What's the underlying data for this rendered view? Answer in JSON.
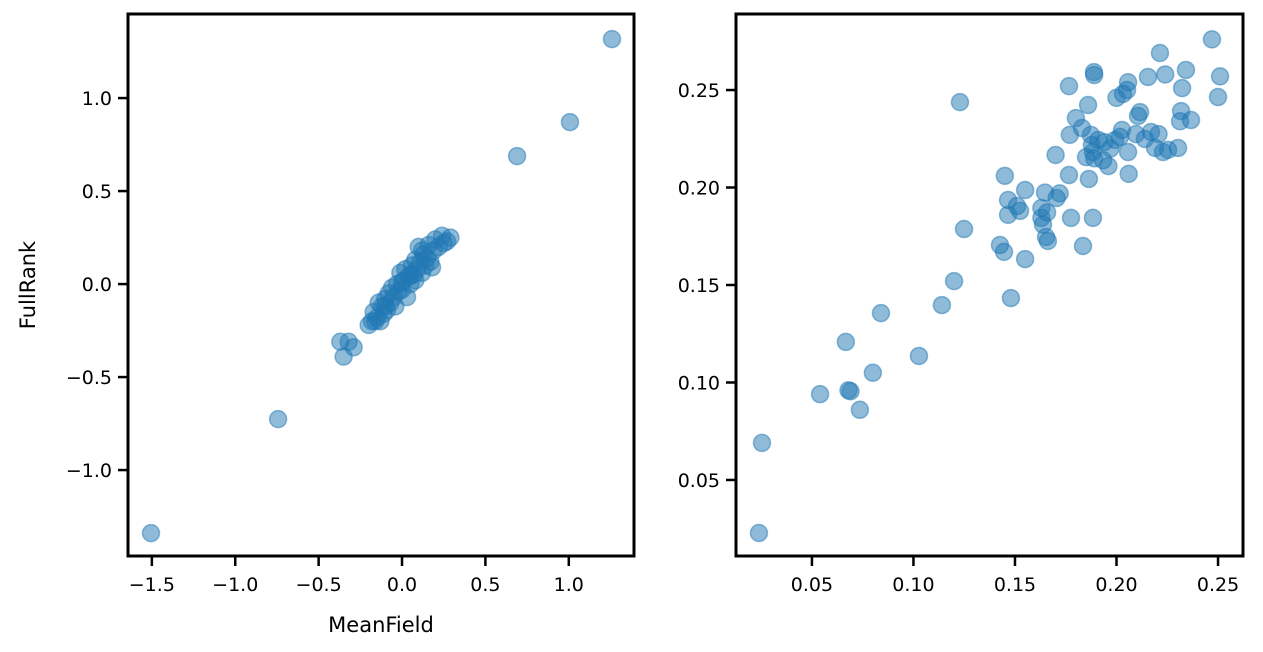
{
  "chart_data": [
    {
      "type": "scatter",
      "xlabel": "MeanField",
      "ylabel": "FullRank",
      "xlim": [
        -1.643,
        1.391
      ],
      "ylim": [
        -1.462,
        1.452
      ],
      "xticks": [
        -1.5,
        -1.0,
        -0.5,
        0.0,
        0.5,
        1.0
      ],
      "xtick_labels": [
        "−1.5",
        "−1.0",
        "−0.5",
        "0.0",
        "0.5",
        "1.0"
      ],
      "yticks": [
        -1.0,
        -0.5,
        0.0,
        0.5,
        1.0
      ],
      "ytick_labels": [
        "−1.0",
        "−0.5",
        "0.0",
        "0.5",
        "1.0"
      ],
      "grid": false,
      "color": "#1f77b4",
      "alpha": 0.5,
      "points": [
        [
          -1.505,
          -1.339
        ],
        [
          -0.743,
          -0.726
        ],
        [
          0.69,
          0.688
        ],
        [
          1.007,
          0.871
        ],
        [
          1.259,
          1.317
        ],
        [
          -0.37,
          -0.31
        ],
        [
          -0.32,
          -0.31
        ],
        [
          -0.35,
          -0.39
        ],
        [
          -0.29,
          -0.34
        ],
        [
          -0.2,
          -0.22
        ],
        [
          -0.18,
          -0.2
        ],
        [
          -0.17,
          -0.15
        ],
        [
          -0.15,
          -0.18
        ],
        [
          -0.14,
          -0.1
        ],
        [
          -0.13,
          -0.2
        ],
        [
          -0.12,
          -0.12
        ],
        [
          -0.11,
          -0.16
        ],
        [
          -0.1,
          -0.08
        ],
        [
          -0.09,
          -0.14
        ],
        [
          -0.08,
          -0.05
        ],
        [
          -0.07,
          -0.1
        ],
        [
          -0.06,
          -0.02
        ],
        [
          -0.05,
          -0.07
        ],
        [
          -0.04,
          -0.12
        ],
        [
          -0.03,
          0.0
        ],
        [
          -0.02,
          -0.04
        ],
        [
          -0.01,
          0.06
        ],
        [
          0.0,
          -0.03
        ],
        [
          0.01,
          0.02
        ],
        [
          0.02,
          0.08
        ],
        [
          0.03,
          -0.07
        ],
        [
          0.04,
          0.04
        ],
        [
          0.05,
          0.0
        ],
        [
          0.06,
          0.1
        ],
        [
          0.07,
          0.05
        ],
        [
          0.08,
          0.02
        ],
        [
          0.09,
          0.08
        ],
        [
          0.1,
          0.2
        ],
        [
          0.11,
          0.12
        ],
        [
          0.12,
          0.06
        ],
        [
          0.13,
          0.16
        ],
        [
          0.14,
          0.1
        ],
        [
          0.15,
          0.14
        ],
        [
          0.16,
          0.21
        ],
        [
          0.17,
          0.12
        ],
        [
          0.18,
          0.09
        ],
        [
          0.19,
          0.18
        ],
        [
          0.2,
          0.24
        ],
        [
          0.22,
          0.2
        ],
        [
          0.24,
          0.26
        ],
        [
          0.25,
          0.22
        ],
        [
          0.27,
          0.23
        ],
        [
          0.29,
          0.25
        ],
        [
          0.05,
          0.05
        ],
        [
          -0.1,
          -0.12
        ],
        [
          0.0,
          0.01
        ],
        [
          0.12,
          0.18
        ],
        [
          -0.16,
          -0.2
        ],
        [
          0.08,
          0.13
        ]
      ]
    },
    {
      "type": "scatter",
      "xlabel": "",
      "ylabel": "",
      "xlim": [
        0.0126,
        0.2623
      ],
      "ylim": [
        0.011,
        0.289
      ],
      "xticks": [
        0.05,
        0.1,
        0.15,
        0.2,
        0.25
      ],
      "xtick_labels": [
        "0.05",
        "0.10",
        "0.15",
        "0.20",
        "0.25"
      ],
      "yticks": [
        0.05,
        0.1,
        0.15,
        0.2,
        0.25
      ],
      "ytick_labels": [
        "0.05",
        "0.10",
        "0.15",
        "0.20",
        "0.25"
      ],
      "grid": false,
      "color": "#1f77b4",
      "alpha": 0.5,
      "points": [
        [
          0.0239,
          0.0228
        ],
        [
          0.0254,
          0.069
        ],
        [
          0.054,
          0.094
        ],
        [
          0.0667,
          0.1208
        ],
        [
          0.068,
          0.096
        ],
        [
          0.069,
          0.0955
        ],
        [
          0.0736,
          0.086
        ],
        [
          0.08,
          0.105
        ],
        [
          0.084,
          0.1356
        ],
        [
          0.1027,
          0.1136
        ],
        [
          0.114,
          0.1397
        ],
        [
          0.12,
          0.152
        ],
        [
          0.1229,
          0.2438
        ],
        [
          0.1249,
          0.1787
        ],
        [
          0.1426,
          0.1705
        ],
        [
          0.1446,
          0.167
        ],
        [
          0.145,
          0.206
        ],
        [
          0.1466,
          0.1936
        ],
        [
          0.1466,
          0.186
        ],
        [
          0.148,
          0.1433
        ],
        [
          0.151,
          0.1905
        ],
        [
          0.1525,
          0.188
        ],
        [
          0.155,
          0.1987
        ],
        [
          0.155,
          0.1633
        ],
        [
          0.163,
          0.1895
        ],
        [
          0.163,
          0.1844
        ],
        [
          0.1638,
          0.181
        ],
        [
          0.1648,
          0.1974
        ],
        [
          0.1653,
          0.1746
        ],
        [
          0.1662,
          0.1726
        ],
        [
          0.1658,
          0.1872
        ],
        [
          0.17,
          0.2167
        ],
        [
          0.1705,
          0.1946
        ],
        [
          0.172,
          0.197
        ],
        [
          0.1766,
          0.252
        ],
        [
          0.1766,
          0.2064
        ],
        [
          0.177,
          0.227
        ],
        [
          0.1776,
          0.1844
        ],
        [
          0.18,
          0.2356
        ],
        [
          0.183,
          0.2305
        ],
        [
          0.1835,
          0.17
        ],
        [
          0.185,
          0.2156
        ],
        [
          0.186,
          0.2423
        ],
        [
          0.1864,
          0.2044
        ],
        [
          0.1874,
          0.227
        ],
        [
          0.1879,
          0.2218
        ],
        [
          0.1884,
          0.2182
        ],
        [
          0.1884,
          0.1844
        ],
        [
          0.1889,
          0.2592
        ],
        [
          0.189,
          0.2577
        ],
        [
          0.189,
          0.215
        ],
        [
          0.191,
          0.2244
        ],
        [
          0.1934,
          0.214
        ],
        [
          0.194,
          0.2233
        ],
        [
          0.196,
          0.211
        ],
        [
          0.197,
          0.22
        ],
        [
          0.1993,
          0.2244
        ],
        [
          0.2,
          0.246
        ],
        [
          0.2027,
          0.2295
        ],
        [
          0.2017,
          0.226
        ],
        [
          0.2032,
          0.248
        ],
        [
          0.2052,
          0.25
        ],
        [
          0.2057,
          0.2182
        ],
        [
          0.206,
          0.207
        ],
        [
          0.2057,
          0.254
        ],
        [
          0.2096,
          0.2274
        ],
        [
          0.2106,
          0.2367
        ],
        [
          0.2116,
          0.2387
        ],
        [
          0.214,
          0.2249
        ],
        [
          0.2155,
          0.2567
        ],
        [
          0.217,
          0.2285
        ],
        [
          0.219,
          0.2203
        ],
        [
          0.2207,
          0.2274
        ],
        [
          0.2214,
          0.269
        ],
        [
          0.2229,
          0.2182
        ],
        [
          0.224,
          0.258
        ],
        [
          0.2254,
          0.2193
        ],
        [
          0.2318,
          0.2392
        ],
        [
          0.2323,
          0.251
        ],
        [
          0.2313,
          0.234
        ],
        [
          0.2303,
          0.2203
        ],
        [
          0.2342,
          0.2603
        ],
        [
          0.2367,
          0.2346
        ],
        [
          0.247,
          0.276
        ],
        [
          0.25,
          0.2464
        ],
        [
          0.251,
          0.257
        ]
      ]
    }
  ]
}
